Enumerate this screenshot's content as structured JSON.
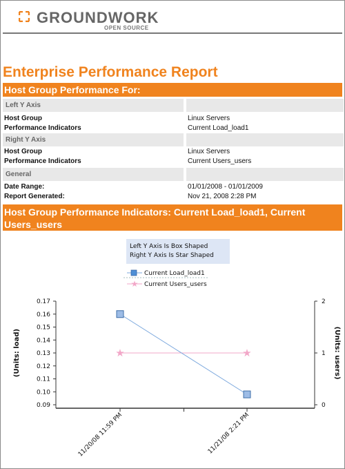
{
  "logo": {
    "brand": "GROUNDWORK",
    "tagline": "OPEN SOURCE",
    "color": "#f0831e"
  },
  "report": {
    "title": "Enterprise Performance Report",
    "section_header": "Host Group Performance For:",
    "left_axis": {
      "heading": "Left Y Axis",
      "rows": [
        {
          "label": "Host Group",
          "value": "Linux Servers"
        },
        {
          "label": "Performance Indicators",
          "value": "Current Load_load1"
        }
      ]
    },
    "right_axis": {
      "heading": "Right Y Axis",
      "rows": [
        {
          "label": "Host Group",
          "value": "Linux Servers"
        },
        {
          "label": "Performance Indicators",
          "value": "Current Users_users"
        }
      ]
    },
    "general": {
      "heading": "General",
      "rows": [
        {
          "label": "Date Range:",
          "value": "01/01/2008 - 01/01/2009"
        },
        {
          "label": "Report Generated:",
          "value": "Nov 21, 2008 2:28 PM"
        }
      ]
    },
    "chart_header": "Host Group Performance Indicators: Current Load_load1, Current Users_users"
  },
  "legend": {
    "note_line1": "Left Y Axis Is Box Shaped",
    "note_line2": "Right Y Axis Is Star Shaped"
  },
  "chart_data": {
    "type": "line",
    "categories": [
      "11/20/08 11:59 PM",
      "11/21/08 2:21 PM"
    ],
    "series": [
      {
        "name": "Current Load_load1",
        "axis": "left",
        "marker": "square",
        "color": "#7aa7dd",
        "values": [
          0.16,
          0.098
        ]
      },
      {
        "name": "Current Users_users",
        "axis": "right",
        "marker": "star",
        "color": "#f2a7c8",
        "values": [
          1,
          1
        ]
      }
    ],
    "ylabel_left": "(Units: load)",
    "ylabel_right": "(Units: users)",
    "ylim_left": [
      0.09,
      0.17
    ],
    "yticks_left": [
      "0.09",
      "0.10",
      "0.11",
      "0.12",
      "0.13",
      "0.14",
      "0.15",
      "0.16",
      "0.17"
    ],
    "ylim_right": [
      0,
      2
    ],
    "yticks_right": [
      "0",
      "1",
      "2"
    ]
  }
}
